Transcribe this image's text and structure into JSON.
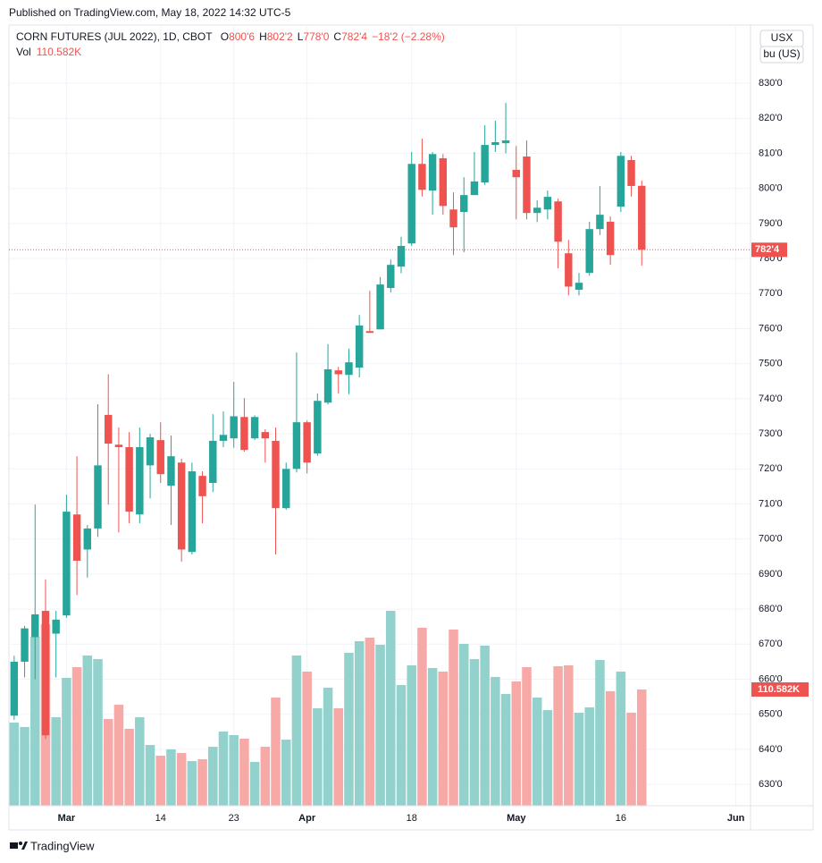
{
  "chart_data": {
    "type": "candlestick",
    "published": "Published on TradingView.com, May 18, 2022 14:32 UTC-5",
    "symbol": "CORN FUTURES (JUL 2022), 1D, CBOT",
    "ohlc_fields": [
      {
        "letter": "O",
        "label": "800'6"
      },
      {
        "letter": "H",
        "label": "802'2"
      },
      {
        "letter": "L",
        "label": "778'0"
      },
      {
        "letter": "C",
        "label": "782'4"
      }
    ],
    "change_label": "−18'2 (−2.28%)",
    "volume_name": "Vol",
    "volume_label": "110.582K",
    "currency": "USX",
    "unit": "bu (US)",
    "brand": "TradingView",
    "up_color": "#26a69a",
    "down_color": "#ef5350",
    "volume_up_color": "#93d2cc",
    "volume_down_color": "#f7a9a7",
    "open": [
      649.6,
      665,
      672,
      679.5,
      673,
      678.2,
      707,
      697,
      703,
      735.4,
      726.9,
      726.2,
      707,
      721,
      728.2,
      715.2,
      721.8,
      696.3,
      718,
      716,
      728,
      728.7,
      734.8,
      728.7,
      730.5,
      728,
      708.8,
      720,
      733.3,
      724.4,
      738.9,
      748.1,
      746.8,
      748.9,
      759.3,
      759.8,
      771.6,
      777.7,
      784.3,
      807,
      799.4,
      808.6,
      794,
      793.3,
      798.1,
      801.7,
      812.4,
      812.9,
      805.3,
      809.1,
      793,
      794,
      796.3,
      781.5,
      771.1,
      775.9,
      788.4,
      790.5,
      794.8,
      808.1,
      800.75
    ],
    "high": [
      666.7,
      675.2,
      709.8,
      688.4,
      679.5,
      712.6,
      723.6,
      704,
      738.4,
      747,
      731.8,
      730.5,
      731.8,
      730,
      733.3,
      729.5,
      722.9,
      721.8,
      719.3,
      735.6,
      736.4,
      744.8,
      740.2,
      735.3,
      731.3,
      731.8,
      721.8,
      753.2,
      733.8,
      741.5,
      755.6,
      749.1,
      754.3,
      763.9,
      770.8,
      774.7,
      779.7,
      786.2,
      810.4,
      814.2,
      810.4,
      809.8,
      798.9,
      803.2,
      810.4,
      818,
      819.3,
      824.4,
      812.1,
      813.7,
      796.6,
      799.4,
      797.1,
      785.3,
      775.9,
      790.5,
      800.7,
      792,
      810.4,
      809.3,
      802.25
    ],
    "low": [
      648.4,
      660.5,
      660,
      643,
      660.5,
      677.5,
      684,
      689,
      700.6,
      709.8,
      701.9,
      704.5,
      704.5,
      711.6,
      716,
      704,
      693.5,
      695.6,
      704.5,
      713.4,
      726.2,
      726,
      724.9,
      728.2,
      721.8,
      695.6,
      708.3,
      719,
      718.7,
      723.7,
      738.4,
      741.5,
      741.3,
      746.1,
      758.8,
      759.8,
      770.3,
      775.8,
      783.6,
      797.7,
      792.5,
      792.5,
      781,
      781.8,
      800.2,
      801,
      810.4,
      810,
      791.2,
      791.2,
      790.4,
      791.2,
      777.2,
      769.5,
      769.5,
      775.1,
      786.7,
      778.2,
      793.3,
      797.7,
      778
    ],
    "close": [
      665,
      674.5,
      678.5,
      644,
      677,
      707.8,
      693.8,
      703,
      721,
      727.2,
      726.2,
      707.8,
      726.2,
      729,
      718.5,
      723.6,
      697,
      719.3,
      712.2,
      728,
      729.7,
      735,
      725.4,
      734.8,
      728.7,
      708.8,
      720,
      733.3,
      721.8,
      739.4,
      748.4,
      747,
      750.4,
      760.9,
      758.8,
      772.6,
      778.2,
      783.6,
      807,
      799.6,
      809.8,
      795,
      788.9,
      798.1,
      802,
      812.4,
      813.2,
      813.7,
      803.2,
      793,
      794.5,
      797.6,
      784.8,
      772,
      773.1,
      788.4,
      792.5,
      781,
      809.3,
      800.7,
      782.5
    ],
    "volume": [
      79.1,
      74.9,
      160.8,
      172.7,
      84.2,
      121.6,
      131.8,
      142.9,
      139.5,
      82.5,
      96.1,
      73.2,
      84.2,
      57.8,
      47.6,
      53.6,
      50.2,
      42.5,
      44.2,
      56.1,
      70.6,
      67.2,
      63.8,
      41.7,
      56.1,
      102.9,
      62.9,
      142.9,
      127.6,
      92.7,
      112.3,
      92.7,
      145.5,
      156.5,
      159.9,
      153.1,
      185.4,
      114.8,
      133.5,
      169.3,
      131,
      127.6,
      167.6,
      154,
      139.5,
      152.3,
      122.5,
      106.3,
      118.2,
      131.8,
      102.9,
      91,
      132.7,
      133.5,
      88.5,
      93.6,
      138.6,
      108.9,
      127.6,
      88.5,
      110.582
    ],
    "xlim": [
      -0.5,
      70.4
    ],
    "xticks": [
      {
        "value": 5,
        "label": "Mar"
      },
      {
        "value": 14,
        "label": "14"
      },
      {
        "value": 21,
        "label": "23"
      },
      {
        "value": 28,
        "label": "Apr"
      },
      {
        "value": 38,
        "label": "18"
      },
      {
        "value": 48,
        "label": "May"
      },
      {
        "value": 58,
        "label": "16"
      },
      {
        "value": 69,
        "label": "Jun"
      }
    ],
    "ylim": [
      623.9,
      846.1
    ],
    "yticks": [
      {
        "value": 630,
        "label": "630'0"
      },
      {
        "value": 640,
        "label": "640'0"
      },
      {
        "value": 650,
        "label": "650'0"
      },
      {
        "value": 660,
        "label": "660'0"
      },
      {
        "value": 670,
        "label": "670'0"
      },
      {
        "value": 680,
        "label": "680'0"
      },
      {
        "value": 690,
        "label": "690'0"
      },
      {
        "value": 700,
        "label": "700'0"
      },
      {
        "value": 710,
        "label": "710'0"
      },
      {
        "value": 720,
        "label": "720'0"
      },
      {
        "value": 730,
        "label": "730'0"
      },
      {
        "value": 740,
        "label": "740'0"
      },
      {
        "value": 750,
        "label": "750'0"
      },
      {
        "value": 760,
        "label": "760'0"
      },
      {
        "value": 770,
        "label": "770'0"
      },
      {
        "value": 780,
        "label": "780'0"
      },
      {
        "value": 790,
        "label": "790'0"
      },
      {
        "value": 800,
        "label": "800'0"
      },
      {
        "value": 810,
        "label": "810'0"
      },
      {
        "value": 820,
        "label": "820'0"
      },
      {
        "value": 830,
        "label": "830'0"
      }
    ],
    "grid": true
  }
}
